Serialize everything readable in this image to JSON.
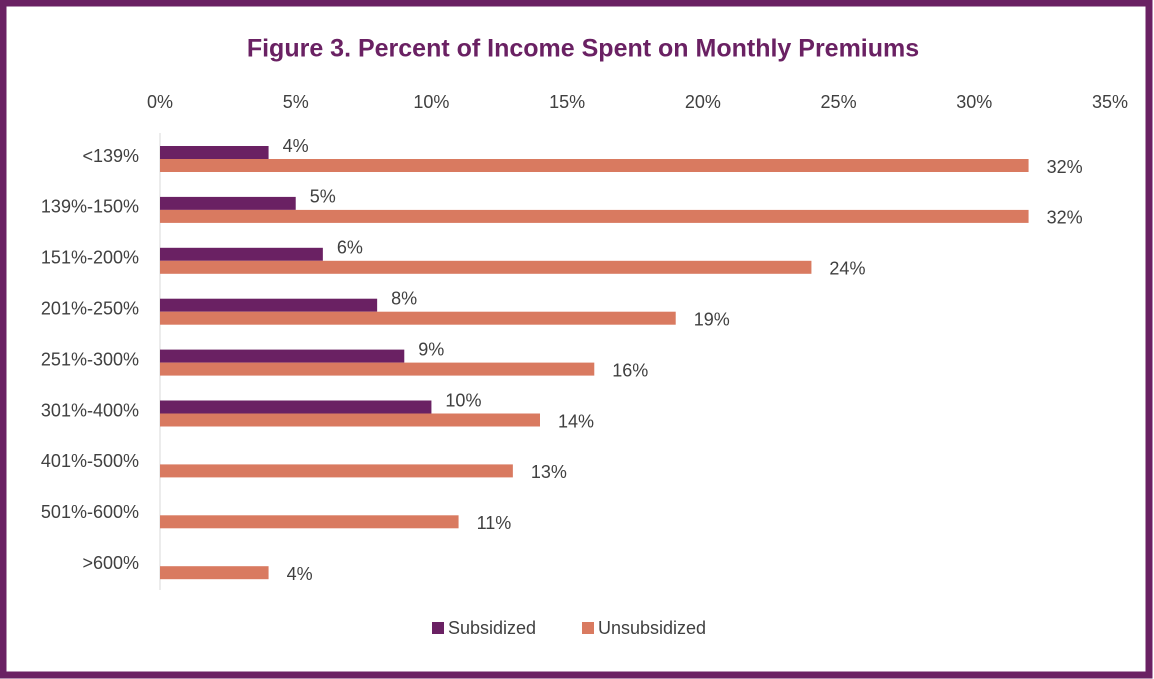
{
  "chart_data": {
    "type": "barh",
    "title": "Figure 3. Percent of Income Spent on Monthly Premiums",
    "categories": [
      "<139%",
      "139%-150%",
      "151%-200%",
      "201%-250%",
      "251%-300%",
      "301%-400%",
      "401%-500%",
      "501%-600%",
      ">600%"
    ],
    "series": [
      {
        "name": "Subsidized",
        "color": "#6a2163",
        "values": [
          4,
          5,
          6,
          8,
          9,
          10,
          null,
          null,
          null
        ],
        "value_labels": [
          "4%",
          "5%",
          "6%",
          "8%",
          "9%",
          "10%",
          null,
          null,
          null
        ]
      },
      {
        "name": "Unsubsidized",
        "color": "#d97a60",
        "values": [
          32,
          32,
          24,
          19,
          16,
          14,
          13,
          11,
          4
        ],
        "value_labels": [
          "32%",
          "32%",
          "24%",
          "19%",
          "16%",
          "14%",
          "13%",
          "11%",
          "4%"
        ]
      }
    ],
    "xlim": [
      0,
      35
    ],
    "xticks": [
      {
        "value": 0,
        "label": "0%"
      },
      {
        "value": 5,
        "label": "5%"
      },
      {
        "value": 10,
        "label": "10%"
      },
      {
        "value": 15,
        "label": "15%"
      },
      {
        "value": 20,
        "label": "20%"
      },
      {
        "value": 25,
        "label": "25%"
      },
      {
        "value": 30,
        "label": "30%"
      },
      {
        "value": 35,
        "label": "35%"
      }
    ],
    "legend": "bottom"
  }
}
